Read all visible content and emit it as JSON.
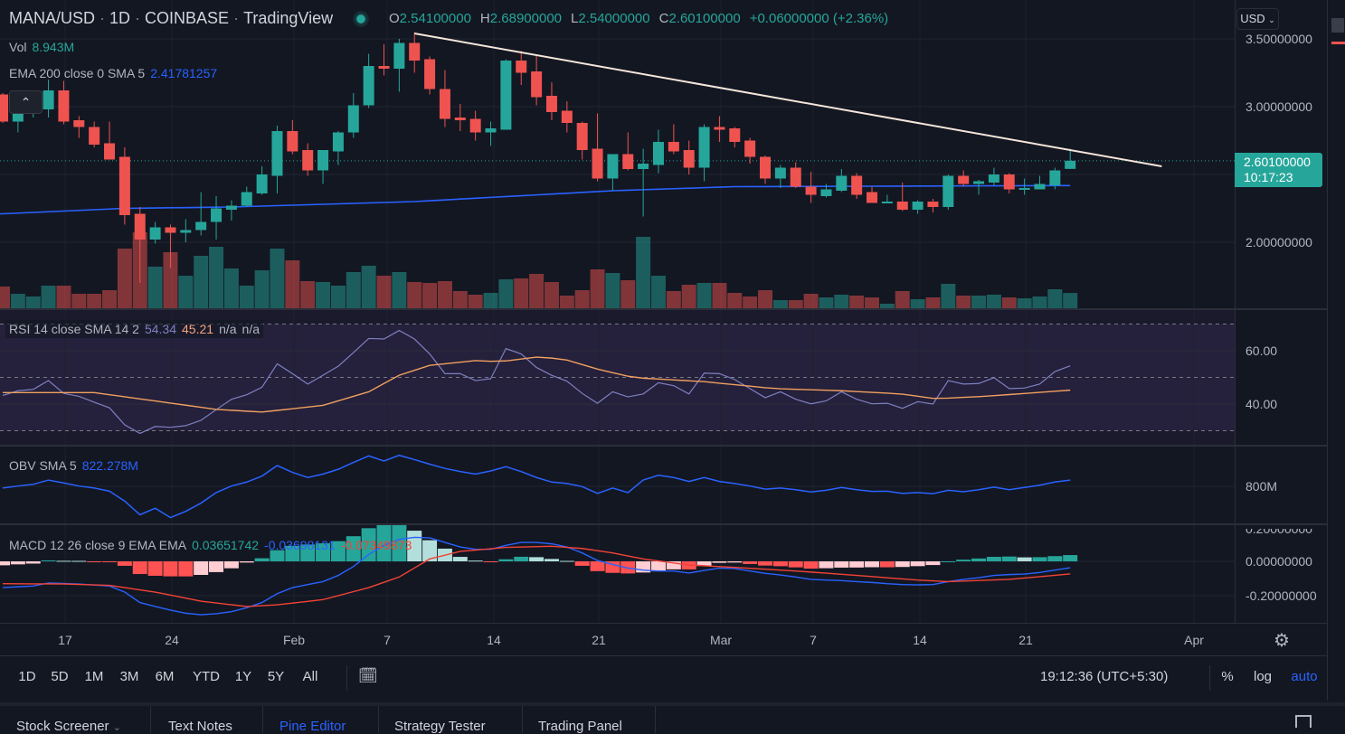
{
  "header": {
    "symbol": "MANA/USD",
    "interval": "1D",
    "exchange": "COINBASE",
    "source": "TradingView",
    "dot": "·",
    "ohlc": {
      "o_label": "O",
      "o": "2.54100000",
      "h_label": "H",
      "h": "2.68900000",
      "l_label": "L",
      "l": "2.54000000",
      "c_label": "C",
      "c": "2.60100000",
      "change": "+0.06000000 (+2.36%)"
    }
  },
  "legends": {
    "vol_label": "Vol",
    "vol_value": "8.943M",
    "ema_label": "EMA 200 close 0 SMA 5",
    "ema_value": "2.41781257",
    "rsi_label": "RSI 14 close SMA 14 2",
    "rsi_value": "54.34",
    "rsi_sma_value": "45.21",
    "rsi_na1": "n/a",
    "rsi_na2": "n/a",
    "obv_label": "OBV SMA 5",
    "obv_value": "822.278M",
    "macd_label": "MACD 12 26 close 9 EMA EMA",
    "macd_hist": "0.03651742",
    "macd_value": "-0.03698131",
    "macd_signal": "-0.07349873"
  },
  "price_axis": {
    "currency": "USD",
    "labels": [
      "3.50000000",
      "3.00000000",
      "2.00000000"
    ],
    "last_price": "2.60100000",
    "countdown": "10:17:23",
    "rsi_labels": [
      "60.00",
      "40.00"
    ],
    "obv_labels": [
      "800M"
    ],
    "macd_labels": [
      "0.20000000",
      "0.00000000",
      "-0.20000000"
    ]
  },
  "time_axis": [
    "17",
    "24",
    "Feb",
    "7",
    "14",
    "21",
    "Mar",
    "7",
    "14",
    "21",
    "Apr"
  ],
  "toolbar": {
    "ranges": [
      "1D",
      "5D",
      "1M",
      "3M",
      "6M",
      "YTD",
      "1Y",
      "5Y",
      "All"
    ],
    "clock": "19:12:36 (UTC+5:30)",
    "percent": "%",
    "log": "log",
    "auto": "auto"
  },
  "tabs": [
    "Stock Screener",
    "Text Notes",
    "Pine Editor",
    "Strategy Tester",
    "Trading Panel"
  ],
  "colors": {
    "bg": "#131722",
    "up": "#26a69a",
    "down": "#ef5350",
    "ema": "#2962ff",
    "rsi": "#7e80c2",
    "rsi_sma": "#f0a060",
    "obv": "#2962ff",
    "macd": "#2962ff",
    "signal": "#f44336",
    "trend": "#f5e6da",
    "accent": "#2962ff"
  },
  "chart_data": {
    "type": "candlestick",
    "title": "MANA/USD 1D COINBASE",
    "x_start": "Jan 13",
    "x_end": "Mar 24",
    "ylim": [
      1.5,
      3.65
    ],
    "candles_ohlc": [
      [
        3.09,
        3.1,
        2.88,
        2.89
      ],
      [
        2.89,
        2.97,
        2.81,
        2.95
      ],
      [
        2.95,
        3.07,
        2.92,
        2.99
      ],
      [
        2.98,
        3.2,
        2.92,
        3.12
      ],
      [
        3.12,
        3.19,
        2.87,
        2.89
      ],
      [
        2.9,
        2.93,
        2.77,
        2.85
      ],
      [
        2.85,
        2.89,
        2.7,
        2.72
      ],
      [
        2.73,
        2.89,
        2.61,
        2.61
      ],
      [
        2.63,
        2.7,
        2.13,
        2.2
      ],
      [
        2.21,
        2.26,
        1.7,
        2.02
      ],
      [
        2.02,
        2.15,
        1.99,
        2.11
      ],
      [
        2.11,
        2.13,
        1.81,
        2.07
      ],
      [
        2.07,
        2.17,
        2.0,
        2.09
      ],
      [
        2.09,
        2.37,
        2.05,
        2.15
      ],
      [
        2.15,
        2.34,
        2.02,
        2.25
      ],
      [
        2.24,
        2.31,
        2.16,
        2.27
      ],
      [
        2.27,
        2.41,
        2.26,
        2.37
      ],
      [
        2.36,
        2.56,
        2.35,
        2.5
      ],
      [
        2.49,
        2.86,
        2.36,
        2.82
      ],
      [
        2.82,
        2.9,
        2.65,
        2.67
      ],
      [
        2.68,
        2.73,
        2.49,
        2.53
      ],
      [
        2.53,
        2.64,
        2.43,
        2.68
      ],
      [
        2.67,
        2.82,
        2.57,
        2.81
      ],
      [
        2.81,
        3.1,
        2.77,
        3.01
      ],
      [
        3.01,
        3.39,
        2.99,
        3.3
      ],
      [
        3.3,
        3.46,
        3.23,
        3.28
      ],
      [
        3.28,
        3.5,
        3.11,
        3.47
      ],
      [
        3.47,
        3.55,
        3.25,
        3.34
      ],
      [
        3.35,
        3.37,
        3.09,
        3.13
      ],
      [
        3.13,
        3.27,
        2.85,
        2.91
      ],
      [
        2.92,
        3.02,
        2.82,
        2.9
      ],
      [
        2.91,
        2.97,
        2.75,
        2.81
      ],
      [
        2.81,
        2.89,
        2.71,
        2.84
      ],
      [
        2.83,
        3.35,
        2.83,
        3.34
      ],
      [
        3.34,
        3.41,
        3.16,
        3.25
      ],
      [
        3.26,
        3.38,
        3.01,
        3.07
      ],
      [
        3.08,
        3.18,
        2.9,
        2.96
      ],
      [
        2.97,
        3.04,
        2.81,
        2.88
      ],
      [
        2.88,
        2.89,
        2.61,
        2.68
      ],
      [
        2.69,
        2.95,
        2.45,
        2.47
      ],
      [
        2.47,
        2.65,
        2.38,
        2.65
      ],
      [
        2.65,
        2.81,
        2.53,
        2.54
      ],
      [
        2.54,
        2.69,
        2.19,
        2.58
      ],
      [
        2.57,
        2.83,
        2.51,
        2.74
      ],
      [
        2.74,
        2.87,
        2.65,
        2.67
      ],
      [
        2.68,
        2.75,
        2.5,
        2.55
      ],
      [
        2.55,
        2.87,
        2.45,
        2.85
      ],
      [
        2.85,
        2.93,
        2.74,
        2.83
      ],
      [
        2.84,
        2.85,
        2.7,
        2.74
      ],
      [
        2.75,
        2.77,
        2.58,
        2.63
      ],
      [
        2.63,
        2.64,
        2.43,
        2.47
      ],
      [
        2.47,
        2.57,
        2.4,
        2.55
      ],
      [
        2.55,
        2.59,
        2.4,
        2.41
      ],
      [
        2.41,
        2.52,
        2.29,
        2.35
      ],
      [
        2.34,
        2.43,
        2.33,
        2.39
      ],
      [
        2.38,
        2.54,
        2.37,
        2.49
      ],
      [
        2.49,
        2.51,
        2.32,
        2.35
      ],
      [
        2.37,
        2.41,
        2.29,
        2.29
      ],
      [
        2.29,
        2.35,
        2.29,
        2.3
      ],
      [
        2.3,
        2.44,
        2.23,
        2.24
      ],
      [
        2.24,
        2.31,
        2.21,
        2.3
      ],
      [
        2.3,
        2.32,
        2.22,
        2.26
      ],
      [
        2.26,
        2.5,
        2.24,
        2.49
      ],
      [
        2.49,
        2.53,
        2.41,
        2.43
      ],
      [
        2.43,
        2.46,
        2.35,
        2.45
      ],
      [
        2.44,
        2.55,
        2.42,
        2.5
      ],
      [
        2.5,
        2.51,
        2.36,
        2.39
      ],
      [
        2.39,
        2.47,
        2.35,
        2.4
      ],
      [
        2.39,
        2.49,
        2.39,
        2.43
      ],
      [
        2.42,
        2.55,
        2.39,
        2.53
      ],
      [
        2.541,
        2.689,
        2.54,
        2.601
      ]
    ],
    "volume_m": [
      12.5,
      8.5,
      7,
      13,
      13,
      8.5,
      8.5,
      10.5,
      33.5,
      42.5,
      23.5,
      31.5,
      18.5,
      29.5,
      34.5,
      22.5,
      13,
      21.5,
      33.5,
      27,
      15.5,
      15,
      13,
      20.5,
      24,
      18.5,
      20.5,
      15,
      14.5,
      15.5,
      10,
      8,
      9,
      16.5,
      17,
      19.5,
      15,
      7.5,
      10.5,
      22,
      20,
      16,
      40,
      18.5,
      10,
      13.5,
      14.5,
      14.5,
      9,
      7,
      10.5,
      5,
      5,
      8.5,
      6.5,
      8,
      7.5,
      6.5,
      3,
      10,
      5.5,
      6.5,
      14,
      7.5,
      7.5,
      8,
      6.5,
      6,
      7,
      11,
      8.943
    ],
    "ema200_anchors": [
      [
        0,
        2.21
      ],
      [
        8,
        2.25
      ],
      [
        15,
        2.26
      ],
      [
        27,
        2.3
      ],
      [
        40,
        2.38
      ],
      [
        48,
        2.41
      ],
      [
        70,
        2.418
      ]
    ],
    "trendline": [
      [
        27,
        3.54
      ],
      [
        76,
        2.56
      ]
    ],
    "rsi": [
      43.2,
      45,
      45.5,
      48.8,
      44,
      42.9,
      40.7,
      38.6,
      32.2,
      29,
      31.6,
      31.3,
      31.9,
      33.9,
      37.9,
      41.8,
      43.5,
      46.3,
      55.1,
      51.4,
      47.5,
      50.8,
      54.2,
      59.3,
      64.6,
      64.4,
      67.6,
      64.4,
      58.8,
      51.4,
      51.4,
      48.8,
      49.5,
      60.8,
      58.8,
      53.7,
      50.8,
      48.6,
      44,
      40.3,
      44.6,
      42.7,
      43.8,
      48,
      46.9,
      43.8,
      51.6,
      51.4,
      49.2,
      45.8,
      42.4,
      44.6,
      41.8,
      40.1,
      41.2,
      44.6,
      41.8,
      40.1,
      40.3,
      38.4,
      40.9,
      40,
      48.8,
      47.5,
      47.7,
      49.9,
      45.8,
      46,
      47.5,
      52.2,
      54.34
    ],
    "rsi_sma_anchors": [
      [
        0,
        44.3
      ],
      [
        6,
        44.3
      ],
      [
        14,
        38
      ],
      [
        17,
        37
      ],
      [
        21,
        39.5
      ],
      [
        24,
        44.6
      ],
      [
        26,
        50.8
      ],
      [
        28,
        54.5
      ],
      [
        31,
        56.3
      ],
      [
        32.6,
        55.9
      ],
      [
        35,
        57.6
      ],
      [
        36.7,
        57
      ],
      [
        39,
        53.1
      ],
      [
        41.4,
        49.9
      ],
      [
        46,
        48.4
      ],
      [
        50.6,
        45.8
      ],
      [
        55,
        45
      ],
      [
        58.9,
        43.8
      ],
      [
        61.2,
        42
      ],
      [
        64.4,
        42.9
      ],
      [
        70,
        45.21
      ]
    ],
    "rsi_bands": [
      70,
      50,
      30
    ],
    "obv_m": [
      794,
      801,
      807,
      822,
      812,
      801,
      794,
      783,
      748,
      700,
      723,
      690,
      712,
      741,
      778,
      801,
      815,
      836,
      873,
      849,
      831,
      843,
      860,
      884,
      907,
      889,
      909,
      894,
      878,
      863,
      852,
      843,
      854,
      869,
      852,
      831,
      815,
      810,
      799,
      775,
      794,
      778,
      822,
      839,
      831,
      817,
      831,
      817,
      810,
      801,
      790,
      794,
      788,
      780,
      786,
      796,
      788,
      782,
      783,
      775,
      778,
      774,
      786,
      781,
      788,
      797,
      788,
      796,
      804,
      815,
      822
    ],
    "macd": [
      -0.153,
      -0.148,
      -0.144,
      -0.126,
      -0.129,
      -0.132,
      -0.138,
      -0.144,
      -0.179,
      -0.24,
      -0.263,
      -0.284,
      -0.302,
      -0.311,
      -0.305,
      -0.293,
      -0.27,
      -0.24,
      -0.188,
      -0.153,
      -0.135,
      -0.118,
      -0.082,
      -0.03,
      0.04,
      0.093,
      0.128,
      0.14,
      0.137,
      0.11,
      0.084,
      0.07,
      0.07,
      0.093,
      0.11,
      0.11,
      0.102,
      0.084,
      0.049,
      0.005,
      -0.018,
      -0.039,
      -0.051,
      -0.056,
      -0.056,
      -0.068,
      -0.053,
      -0.039,
      -0.042,
      -0.056,
      -0.07,
      -0.079,
      -0.091,
      -0.105,
      -0.109,
      -0.112,
      -0.118,
      -0.123,
      -0.13,
      -0.135,
      -0.137,
      -0.135,
      -0.118,
      -0.105,
      -0.095,
      -0.082,
      -0.077,
      -0.074,
      -0.065,
      -0.051,
      -0.037
    ],
    "signal_anchors": [
      [
        0,
        -0.13
      ],
      [
        4,
        -0.132
      ],
      [
        7,
        -0.14
      ],
      [
        10,
        -0.179
      ],
      [
        13,
        -0.232
      ],
      [
        16,
        -0.263
      ],
      [
        18,
        -0.253
      ],
      [
        21,
        -0.223
      ],
      [
        24,
        -0.153
      ],
      [
        26,
        -0.091
      ],
      [
        28,
        0.014
      ],
      [
        30,
        0.058
      ],
      [
        33,
        0.081
      ],
      [
        36,
        0.088
      ],
      [
        38,
        0.075
      ],
      [
        40,
        0.049
      ],
      [
        42,
        0.014
      ],
      [
        45,
        -0.021
      ],
      [
        48,
        -0.035
      ],
      [
        52,
        -0.056
      ],
      [
        56,
        -0.082
      ],
      [
        60,
        -0.109
      ],
      [
        62,
        -0.118
      ],
      [
        66,
        -0.105
      ],
      [
        70,
        -0.0735
      ]
    ]
  }
}
